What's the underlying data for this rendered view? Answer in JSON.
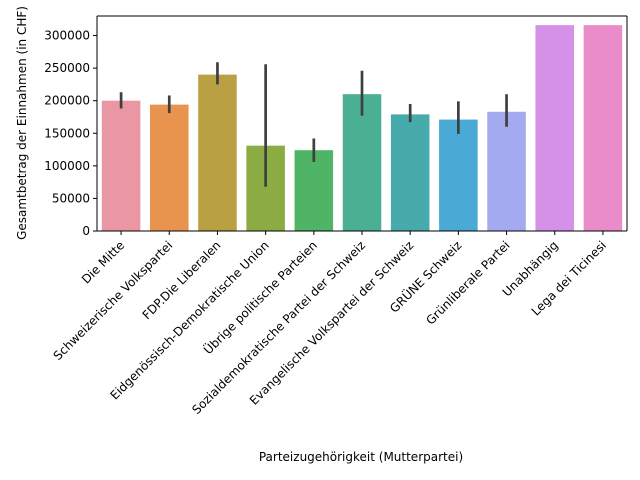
{
  "chart_data": {
    "type": "bar",
    "title": "",
    "xlabel": "Parteizugehörigkeit (Mutterpartei)",
    "ylabel": "Gesamtbetrag der Einnahmen (in CHF)",
    "ylim": [
      0,
      330000
    ],
    "yticks": [
      0,
      50000,
      100000,
      150000,
      200000,
      250000,
      300000
    ],
    "ytick_labels": [
      "0",
      "50000",
      "100000",
      "150000",
      "200000",
      "250000",
      "300000"
    ],
    "grid": false,
    "legend": "none",
    "categories": [
      "Die Mitte",
      "Schweizerische Volkspartei",
      "FDP.Die Liberalen",
      "Eidgenössisch-Demokratische Union",
      "Übrige politische Parteien",
      "Sozialdemokratische Partei der Schweiz",
      "Evangelische Volkspartei der Schweiz",
      "GRÜNE Schweiz",
      "Grünliberale Partei",
      "Unabhängig",
      "Lega dei Ticinesi"
    ],
    "values": [
      200000,
      194000,
      240000,
      131000,
      124000,
      210000,
      179000,
      171000,
      183000,
      316000,
      316000
    ],
    "error_low": [
      188000,
      181000,
      225000,
      68000,
      106000,
      177000,
      167000,
      149000,
      160000,
      null,
      null
    ],
    "error_high": [
      213000,
      208000,
      259000,
      256000,
      142000,
      246000,
      195000,
      199000,
      210000,
      null,
      null
    ],
    "colors": [
      "#ea96a3",
      "#e8944f",
      "#b9a043",
      "#8aac43",
      "#4fb465",
      "#4aaf93",
      "#47abac",
      "#4aa9d5",
      "#a4aaf0",
      "#d591e8",
      "#e98cc9"
    ],
    "error_color": "#3f3f3f"
  }
}
